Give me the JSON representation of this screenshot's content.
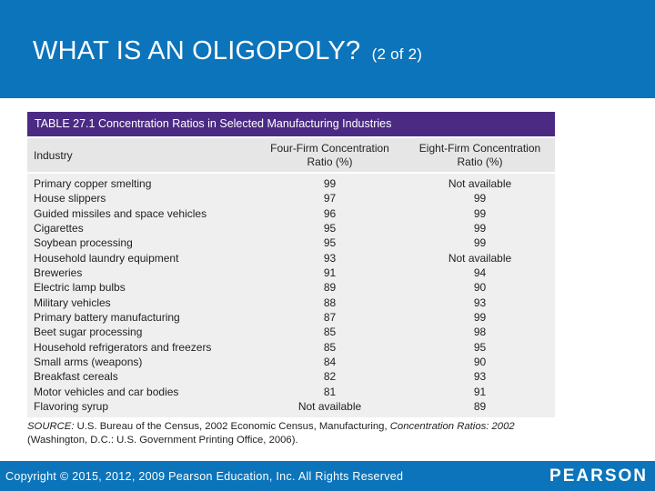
{
  "slide": {
    "title": "WHAT IS AN OLIGOPOLY?",
    "title_suffix": "(2 of 2)"
  },
  "table": {
    "caption": "TABLE 27.1 Concentration Ratios in Selected Manufacturing Industries",
    "headers": [
      "Industry",
      "Four-Firm Concentration Ratio (%)",
      "Eight-Firm Concentration Ratio (%)"
    ],
    "rows": [
      [
        "Primary copper smelting",
        "99",
        "Not available"
      ],
      [
        "House slippers",
        "97",
        "99"
      ],
      [
        "Guided missiles and space vehicles",
        "96",
        "99"
      ],
      [
        "Cigarettes",
        "95",
        "99"
      ],
      [
        "Soybean processing",
        "95",
        "99"
      ],
      [
        "Household laundry equipment",
        "93",
        "Not available"
      ],
      [
        "Breweries",
        "91",
        "94"
      ],
      [
        "Electric lamp bulbs",
        "89",
        "90"
      ],
      [
        "Military vehicles",
        "88",
        "93"
      ],
      [
        "Primary battery manufacturing",
        "87",
        "99"
      ],
      [
        "Beet sugar processing",
        "85",
        "98"
      ],
      [
        "Household refrigerators and freezers",
        "85",
        "95"
      ],
      [
        "Small arms (weapons)",
        "84",
        "90"
      ],
      [
        "Breakfast cereals",
        "82",
        "93"
      ],
      [
        "Motor vehicles and car bodies",
        "81",
        "91"
      ],
      [
        "Flavoring syrup",
        "Not available",
        "89"
      ]
    ]
  },
  "source": {
    "label": "SOURCE:",
    "text_a": " U.S. Bureau of the Census, 2002 Economic Census, Manufacturing, ",
    "italic": "Concentration Ratios: 2002",
    "text_b": " (Washington, D.C.: U.S. Government Printing Office, 2006)."
  },
  "footer": {
    "copyright": "Copyright © 2015, 2012, 2009 Pearson Education, Inc. All Rights Reserved",
    "logo": "PEARSON"
  },
  "colors": {
    "header_blue": "#0b74bb",
    "caption_purple": "#4b2a84"
  }
}
